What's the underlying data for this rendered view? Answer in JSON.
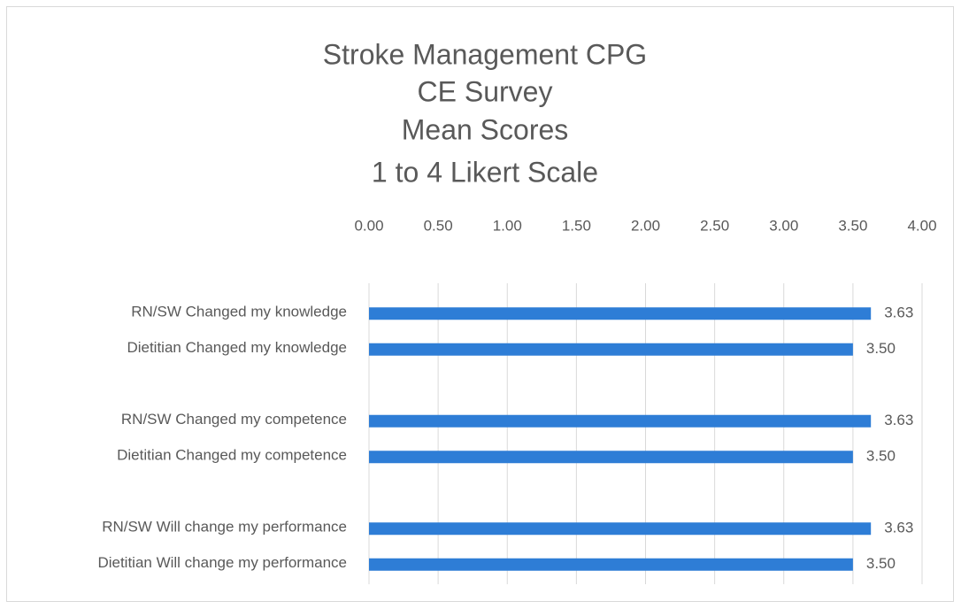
{
  "chart_data": {
    "type": "hbar",
    "title": [
      "Stroke Management CPG",
      "CE Survey",
      "Mean Scores",
      "1 to 4 Likert Scale"
    ],
    "categories": [
      "RN/SW Changed my knowledge",
      "Dietitian Changed my knowledge",
      null,
      "RN/SW Changed my competence",
      "Dietitian Changed my competence",
      null,
      "RN/SW Will change my performance",
      "Dietitian Will change my performance"
    ],
    "values": [
      3.63,
      3.5,
      null,
      3.63,
      3.5,
      null,
      3.63,
      3.5
    ],
    "value_labels": [
      "3.63",
      "3.50",
      null,
      "3.63",
      "3.50",
      null,
      "3.63",
      "3.50"
    ],
    "color": "#2e7dd6",
    "xlim": [
      0,
      4
    ],
    "xticks": [
      {
        "value": 0,
        "label": "0.00"
      },
      {
        "value": 0.5,
        "label": "0.50"
      },
      {
        "value": 1,
        "label": "1.00"
      },
      {
        "value": 1.5,
        "label": "1.50"
      },
      {
        "value": 2,
        "label": "2.00"
      },
      {
        "value": 2.5,
        "label": "2.50"
      },
      {
        "value": 3,
        "label": "3.00"
      },
      {
        "value": 3.5,
        "label": "3.50"
      },
      {
        "value": 4,
        "label": "4.00"
      }
    ],
    "grid": true
  }
}
